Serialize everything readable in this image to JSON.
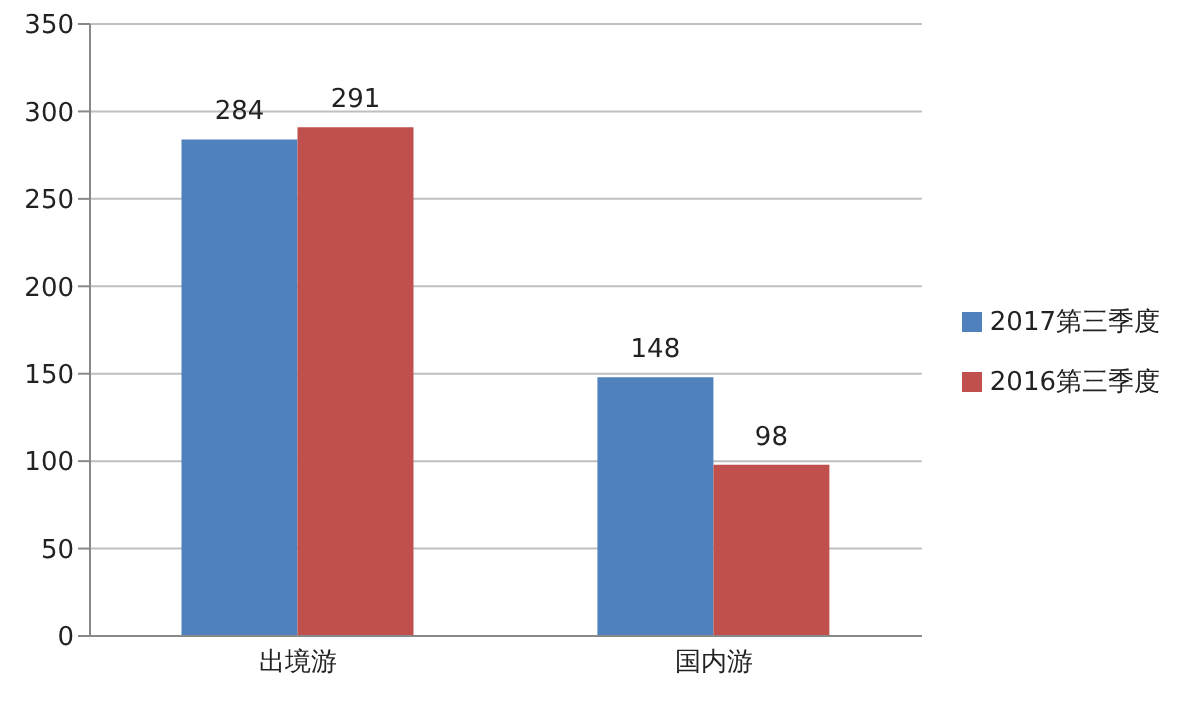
{
  "chart_data": {
    "type": "bar",
    "categories": [
      "出境游",
      "国内游"
    ],
    "series": [
      {
        "name": "2017第三季度",
        "color": "#4f81bd",
        "values": [
          284,
          148
        ]
      },
      {
        "name": "2016第三季度",
        "color": "#c0504d",
        "values": [
          291,
          98
        ]
      }
    ],
    "ylim": [
      0,
      350
    ],
    "yticks": [
      0,
      50,
      100,
      150,
      200,
      250,
      300,
      350
    ],
    "grid": "y",
    "legend": "right",
    "data_labels": true
  }
}
